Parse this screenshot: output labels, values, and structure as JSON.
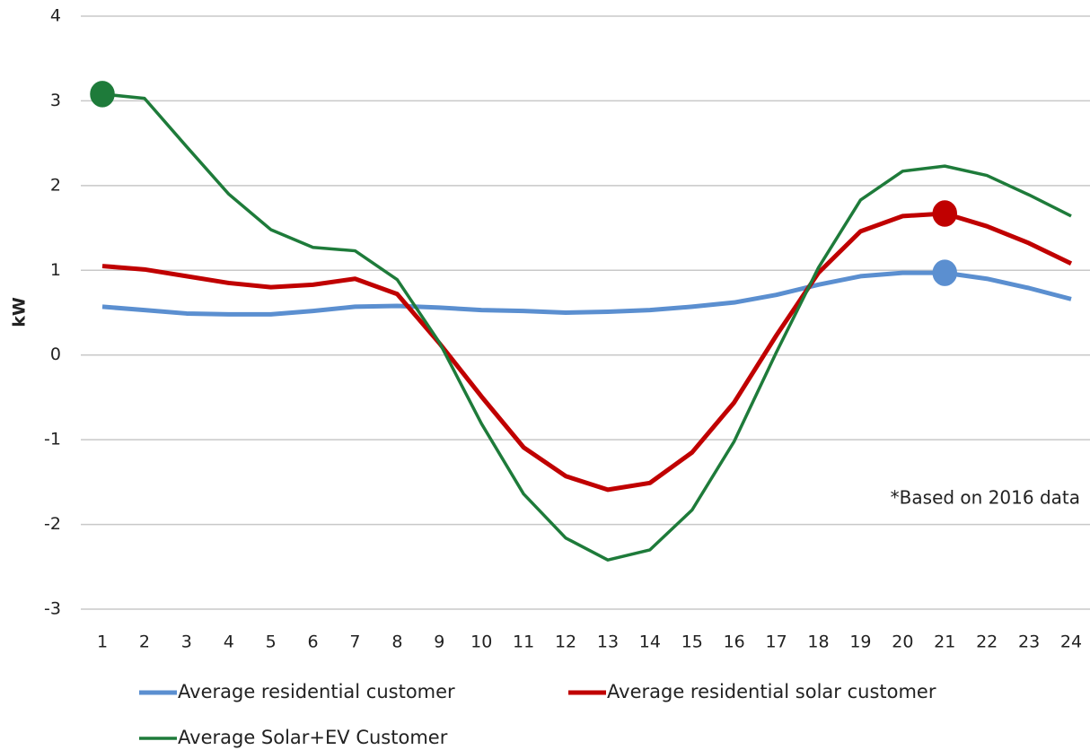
{
  "chart_data": {
    "type": "line",
    "y_label": "kW",
    "annotation": "*Based on 2016 data",
    "categories": [
      1,
      2,
      3,
      4,
      5,
      6,
      7,
      8,
      9,
      10,
      11,
      12,
      13,
      14,
      15,
      16,
      17,
      18,
      19,
      20,
      21,
      22,
      23,
      24
    ],
    "series": [
      {
        "name": "Average residential customer",
        "color": "#5b8fd0",
        "width": 5,
        "highlight": 20,
        "values": [
          0.57,
          0.53,
          0.49,
          0.48,
          0.48,
          0.52,
          0.57,
          0.58,
          0.56,
          0.53,
          0.52,
          0.5,
          0.51,
          0.53,
          0.57,
          0.62,
          0.71,
          0.83,
          0.93,
          0.97,
          0.97,
          0.9,
          0.79,
          0.66
        ]
      },
      {
        "name": "Average residential solar customer",
        "color": "#c00000",
        "width": 5,
        "highlight": 20,
        "values": [
          1.05,
          1.01,
          0.93,
          0.85,
          0.8,
          0.83,
          0.9,
          0.72,
          0.14,
          -0.49,
          -1.09,
          -1.43,
          -1.59,
          -1.51,
          -1.15,
          -0.56,
          0.23,
          0.97,
          1.46,
          1.64,
          1.67,
          1.52,
          1.32,
          1.08
        ]
      },
      {
        "name": "Average Solar+EV Customer",
        "color": "#1e7b3a",
        "width": 3.5,
        "highlight": 0,
        "values": [
          3.08,
          3.03,
          2.46,
          1.9,
          1.48,
          1.27,
          1.23,
          0.89,
          0.15,
          -0.81,
          -1.64,
          -2.16,
          -2.42,
          -2.3,
          -1.83,
          -1.02,
          0.03,
          1.03,
          1.83,
          2.17,
          2.23,
          2.12,
          1.89,
          1.64
        ]
      }
    ],
    "ylim": [
      -3,
      4
    ],
    "yticks": [
      -3,
      -2,
      -1,
      0,
      1,
      2,
      3,
      4
    ],
    "grid": true
  }
}
